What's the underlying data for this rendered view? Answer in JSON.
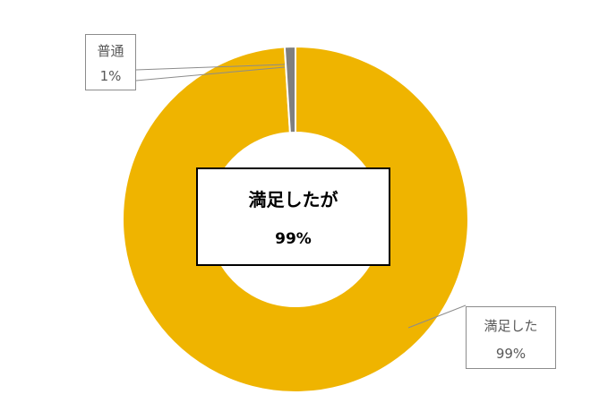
{
  "chart_data": {
    "type": "pie",
    "donut": true,
    "slices": [
      {
        "name": "満足した",
        "value": 99,
        "label": "99%",
        "color": "#efb400"
      },
      {
        "name": "普通",
        "value": 1,
        "label": "1%",
        "color": "#7f7f7f"
      }
    ],
    "center_label": {
      "title": "満足したが",
      "value": "99%"
    }
  }
}
